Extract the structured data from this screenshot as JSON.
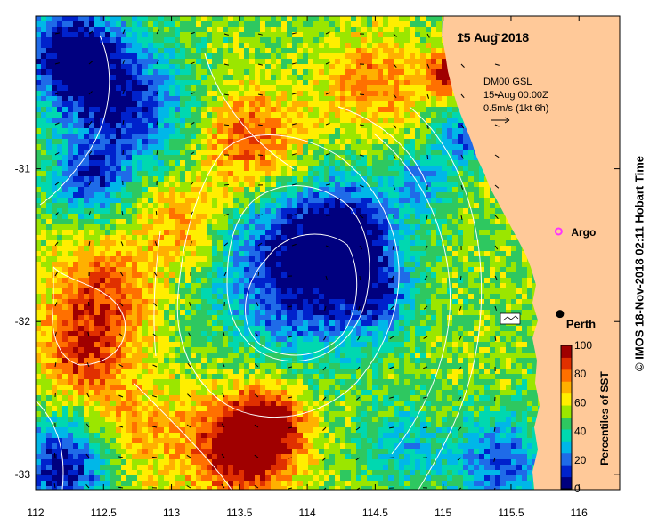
{
  "date_title": "15 Aug 2018",
  "current_info": {
    "model": "DM00 GSL",
    "time": "15-Aug 00:00Z",
    "scale": "0.5m/s (1kt 6h)"
  },
  "markers": {
    "argo": {
      "label": "Argo",
      "lon": 115.85,
      "lat": -31.41,
      "color": "#ff33ff"
    },
    "perth": {
      "label": "Perth",
      "lon": 115.86,
      "lat": -31.95,
      "color": "#000000"
    }
  },
  "axes": {
    "x_ticks": [
      {
        "v": 112,
        "label": "112"
      },
      {
        "v": 112.5,
        "label": "112.5"
      },
      {
        "v": 113,
        "label": "113"
      },
      {
        "v": 113.5,
        "label": "113.5"
      },
      {
        "v": 114,
        "label": "114"
      },
      {
        "v": 114.5,
        "label": "114.5"
      },
      {
        "v": 115,
        "label": "115"
      },
      {
        "v": 115.5,
        "label": "115.5"
      },
      {
        "v": 116,
        "label": "116"
      }
    ],
    "y_ticks": [
      {
        "v": -31,
        "label": "-31"
      },
      {
        "v": -32,
        "label": "-32"
      },
      {
        "v": -33,
        "label": "-33"
      }
    ],
    "lon_range": [
      112,
      116.3
    ],
    "lat_range": [
      -33.1,
      -30.0
    ]
  },
  "colorbar": {
    "title": "Percentiles of SST",
    "ticks": [
      "0",
      "20",
      "40",
      "60",
      "80",
      "100"
    ],
    "colors": [
      "#00007f",
      "#0022cc",
      "#1f6be8",
      "#00b7e8",
      "#00d8b0",
      "#2ec860",
      "#9be600",
      "#ffee00",
      "#ffb000",
      "#ff7000",
      "#e03000",
      "#a00000"
    ]
  },
  "land_color": "#ffc999",
  "credit": "© IMOS 18-Nov-2018 02:11 Hobart Time"
}
